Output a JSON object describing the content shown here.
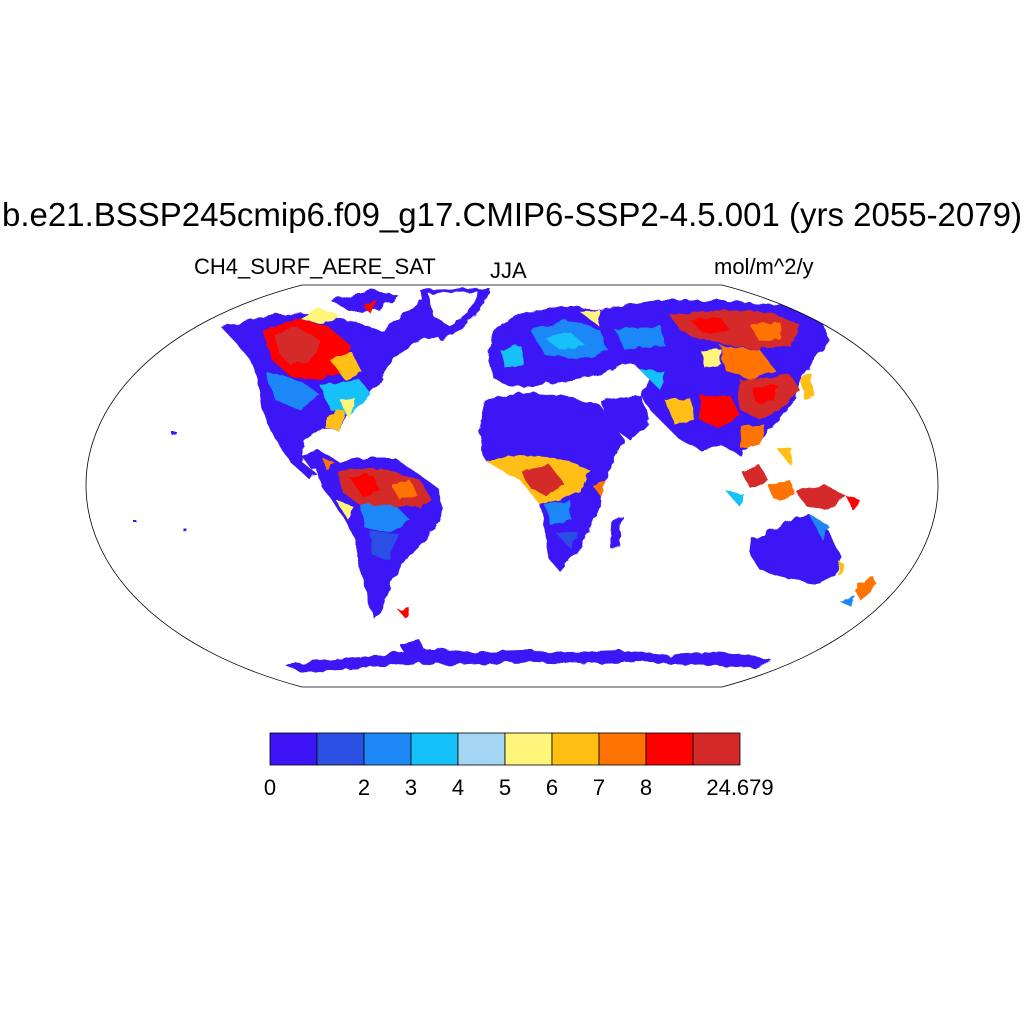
{
  "title": "b.e21.BSSP245cmip6.f09_g17.CMIP6-SSP2-4.5.001 (yrs 2055-2079)",
  "variable": "CH4_SURF_AERE_SAT",
  "season": "JJA",
  "units": "mol/m^2/y",
  "colorbar": {
    "colors": [
      "#3d14f5",
      "#2c50e4",
      "#1e88f7",
      "#13c0f8",
      "#a3d6f2",
      "#fff57a",
      "#ffbf13",
      "#ff7300",
      "#fe0000",
      "#d42a2a"
    ],
    "ticks": [
      {
        "index": 0,
        "label": "0"
      },
      {
        "index": 2,
        "label": "2"
      },
      {
        "index": 3,
        "label": "3"
      },
      {
        "index": 4,
        "label": "4"
      },
      {
        "index": 5,
        "label": "5"
      },
      {
        "index": 6,
        "label": "6"
      },
      {
        "index": 7,
        "label": "7"
      },
      {
        "index": 8,
        "label": "8"
      },
      {
        "index": 10,
        "label": "24.679"
      }
    ]
  }
}
